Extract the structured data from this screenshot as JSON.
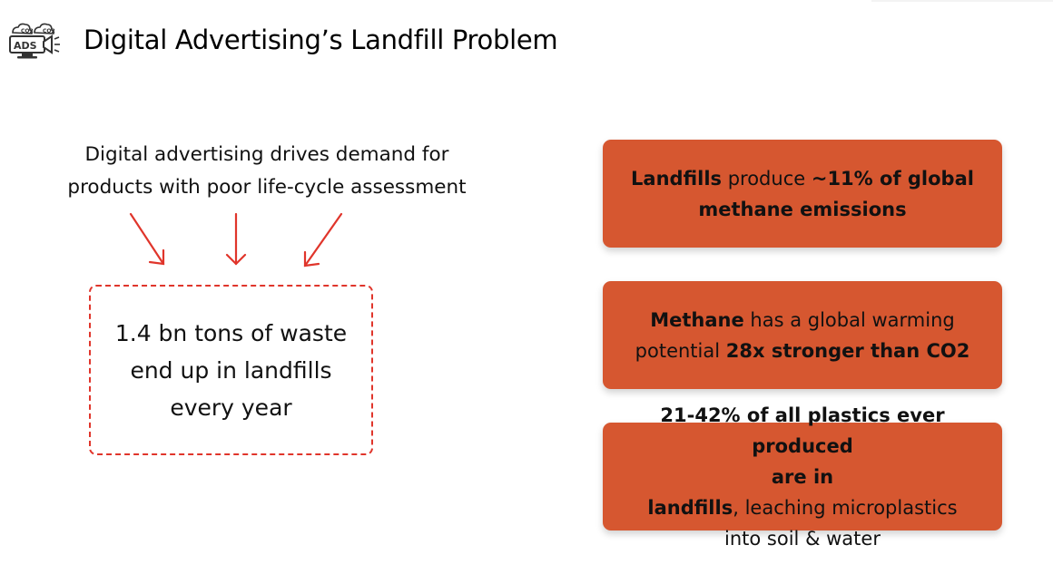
{
  "header": {
    "title": "Digital Advertising’s Landfill Problem",
    "logo": {
      "icon": "ads-monitor-co2-icon",
      "text": "ADS",
      "badge_1": "CO2",
      "badge_2": "CO2"
    }
  },
  "left": {
    "lead_line_1": "Digital advertising drives demand for",
    "lead_line_2": "products with poor life-cycle assessment",
    "waste_line_1": "1.4 bn tons of waste",
    "waste_line_2": "end up in landfills",
    "waste_line_3": "every year"
  },
  "cards": [
    {
      "bold_1": "Landfills",
      "normal_1": " produce ",
      "bold_2": "~11% of global",
      "line2_bold": "methane emissions"
    },
    {
      "bold_1": "Methane",
      "normal_1": " has a global warming",
      "line2_normal": "potential ",
      "line2_bold": "28x stronger than CO2"
    },
    {
      "bold_1": "21-42% of all plastics ever produced",
      "line2_bold": "are in landfills",
      "line2_normal": ", leaching microplastics",
      "line3_normal": "into soil & water"
    }
  ],
  "colors": {
    "card_bg": "#d65730",
    "accent_red": "#e0352b",
    "text": "#111111"
  }
}
